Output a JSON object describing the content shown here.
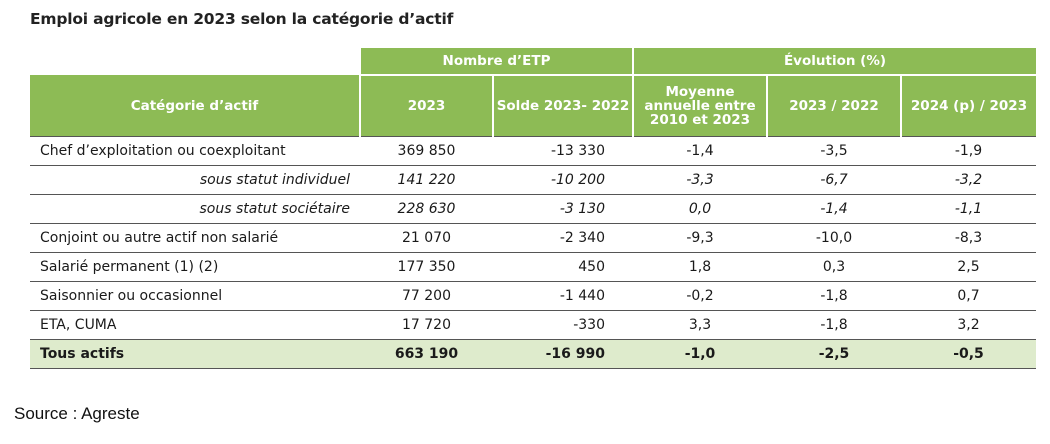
{
  "title": "Emploi agricole en 2023 selon la catégorie d’actif",
  "group_headers": {
    "etp": "Nombre d’ETP",
    "evolution": "Évolution (%)"
  },
  "columns": {
    "category": "Catégorie d’actif",
    "y2023": "2023",
    "solde": "Solde 2023- 2022",
    "moyenne": "Moyenne annuelle entre 2010 et 2023",
    "evo_2023_2022": "2023 / 2022",
    "evo_2024_2023": "2024 (p) / 2023"
  },
  "rows": [
    {
      "label": "Chef d’exploitation ou coexploitant",
      "y2023": "369 850",
      "solde": "-13 330",
      "moyenne": "-1,4",
      "evo1": "-3,5",
      "evo2": "-1,9"
    },
    {
      "label": "sous statut individuel",
      "y2023": "141 220",
      "solde": "-10 200",
      "moyenne": "-3,3",
      "evo1": "-6,7",
      "evo2": "-3,2"
    },
    {
      "label": "sous statut sociétaire",
      "y2023": "228 630",
      "solde": "-3 130",
      "moyenne": "0,0",
      "evo1": "-1,4",
      "evo2": "-1,1"
    },
    {
      "label": "Conjoint ou autre actif non salarié",
      "y2023": "21 070",
      "solde": "-2 340",
      "moyenne": "-9,3",
      "evo1": "-10,0",
      "evo2": "-8,3"
    },
    {
      "label": "Salarié permanent (1) (2)",
      "y2023": "177 350",
      "solde": "450",
      "moyenne": "1,8",
      "evo1": "0,3",
      "evo2": "2,5"
    },
    {
      "label": "Saisonnier ou occasionnel",
      "y2023": "77 200",
      "solde": "-1 440",
      "moyenne": "-0,2",
      "evo1": "-1,8",
      "evo2": "0,7"
    },
    {
      "label": "ETA, CUMA",
      "y2023": "17 720",
      "solde": "-330",
      "moyenne": "3,3",
      "evo1": "-1,8",
      "evo2": "3,2"
    },
    {
      "label": "Tous actifs",
      "y2023": "663 190",
      "solde": "-16 990",
      "moyenne": "-1,0",
      "evo1": "-2,5",
      "evo2": "-0,5"
    }
  ],
  "source": "Source : Agreste",
  "colors": {
    "header_green": "#8dbb55",
    "total_row_bg": "#deebcc"
  }
}
